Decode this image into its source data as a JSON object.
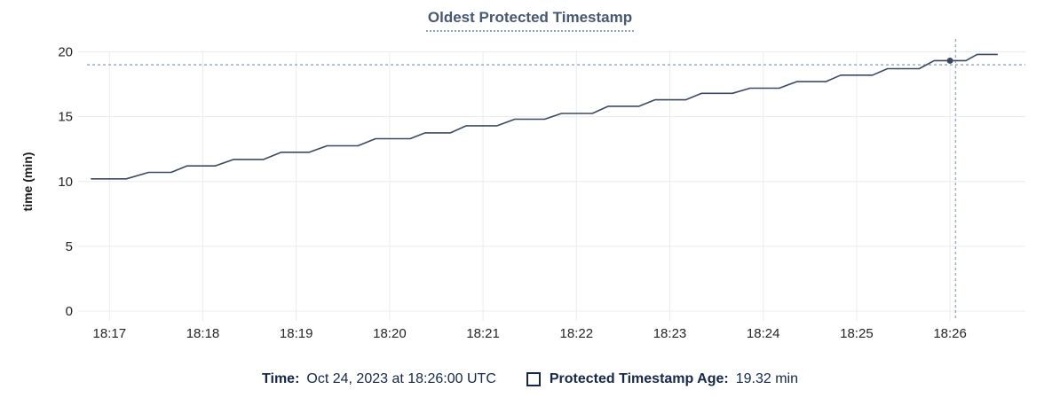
{
  "title": "Oldest Protected Timestamp",
  "y_axis": {
    "label": "time (min)"
  },
  "legend": {
    "time_label": "Time:",
    "time_value": "Oct 24, 2023 at 18:26:00 UTC",
    "series_icon": "checkbox-square-icon",
    "series_label": "Protected Timestamp Age:",
    "series_value": "19.32 min"
  },
  "colors": {
    "line": "#3b4a63",
    "dot": "#3b4a63",
    "grid": "#ececec",
    "crosshair": "#9badbd",
    "tick_text": "#242424",
    "title_text": "#475872",
    "legend_text": "#152849"
  },
  "chart_data": {
    "type": "line",
    "title": "Oldest Protected Timestamp",
    "xlabel": "",
    "ylabel": "time (min)",
    "ylim": [
      0,
      20
    ],
    "y_ticks": [
      0,
      5,
      10,
      15,
      20
    ],
    "x_ticks": [
      "18:17",
      "18:18",
      "18:19",
      "18:20",
      "18:21",
      "18:22",
      "18:23",
      "18:24",
      "18:25",
      "18:26"
    ],
    "x_minutes_after_first_tick_range": [
      -0.33,
      9.81
    ],
    "grid": true,
    "legend_position": "bottom",
    "series": [
      {
        "name": "Protected Timestamp Age",
        "unit": "min",
        "points": [
          [
            -0.2,
            10.2
          ],
          [
            0.18,
            10.2
          ],
          [
            0.42,
            10.7
          ],
          [
            0.66,
            10.7
          ],
          [
            0.83,
            11.2
          ],
          [
            1.13,
            11.2
          ],
          [
            1.33,
            11.7
          ],
          [
            1.65,
            11.7
          ],
          [
            1.84,
            12.25
          ],
          [
            2.14,
            12.25
          ],
          [
            2.33,
            12.75
          ],
          [
            2.66,
            12.75
          ],
          [
            2.85,
            13.3
          ],
          [
            3.22,
            13.3
          ],
          [
            3.38,
            13.75
          ],
          [
            3.65,
            13.75
          ],
          [
            3.82,
            14.3
          ],
          [
            4.15,
            14.3
          ],
          [
            4.34,
            14.8
          ],
          [
            4.66,
            14.8
          ],
          [
            4.84,
            15.25
          ],
          [
            5.17,
            15.25
          ],
          [
            5.34,
            15.8
          ],
          [
            5.67,
            15.8
          ],
          [
            5.84,
            16.3
          ],
          [
            6.17,
            16.3
          ],
          [
            6.34,
            16.8
          ],
          [
            6.67,
            16.8
          ],
          [
            6.86,
            17.2
          ],
          [
            7.17,
            17.2
          ],
          [
            7.36,
            17.7
          ],
          [
            7.67,
            17.7
          ],
          [
            7.83,
            18.2
          ],
          [
            8.17,
            18.2
          ],
          [
            8.33,
            18.7
          ],
          [
            8.67,
            18.7
          ],
          [
            8.83,
            19.32
          ],
          [
            9.17,
            19.32
          ],
          [
            9.29,
            19.8
          ],
          [
            9.51,
            19.8
          ]
        ]
      }
    ],
    "hover": {
      "time": "18:26:00",
      "t": 9.0,
      "value": 19.32,
      "crosshair_t": 9.06,
      "crosshair_value": 19.0
    }
  }
}
